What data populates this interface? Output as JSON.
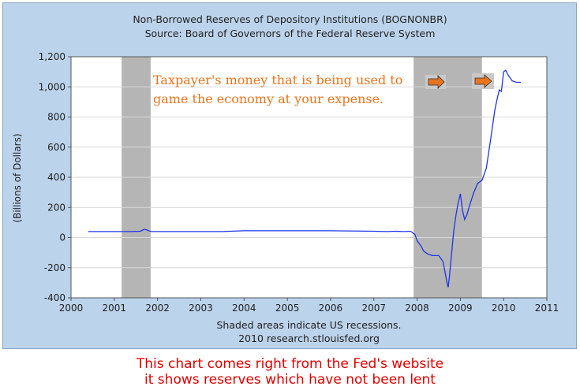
{
  "header": {
    "title": "Non-Borrowed Reserves of Depository Institutions (BOGNONBR)",
    "source": "Source: Board of Governors of the Federal Reserve System"
  },
  "footer": {
    "note": "Shaded areas indicate US recessions.",
    "credit": "2010 research.stlouisfed.org"
  },
  "caption": {
    "line1": "This chart comes right from the Fed's website",
    "line2": "it shows reserves which have not been lent"
  },
  "colors": {
    "line": "#1f35e6",
    "recession": "#b5b5b5",
    "frame": "#bcd3ec",
    "annotation": "#e8741e",
    "caption": "#e00000"
  },
  "chart_data": {
    "type": "line",
    "title": "Non-Borrowed Reserves of Depository Institutions (BOGNONBR)",
    "ylabel": "(Billions of Dollars)",
    "xlim": [
      2000,
      2011
    ],
    "ylim": [
      -400,
      1200
    ],
    "x_ticks": [
      "2000",
      "2001",
      "2002",
      "2003",
      "2004",
      "2005",
      "2006",
      "2007",
      "2008",
      "2009",
      "2010",
      "2011"
    ],
    "y_ticks": [
      "-400",
      "-200",
      "0",
      "200",
      "400",
      "600",
      "800",
      "1,000",
      "1,200"
    ],
    "y_tick_values": [
      -400,
      -200,
      0,
      200,
      400,
      600,
      800,
      1000,
      1200
    ],
    "grid": true,
    "recessions": [
      [
        2001.17,
        2001.84
      ],
      [
        2007.92,
        2009.5
      ]
    ],
    "annotation_lines": [
      "Taxpayer's money  that is being used  to",
      "game the economy at your expense."
    ],
    "series": [
      {
        "x": [
          2000.4,
          2001.0,
          2001.4,
          2001.6,
          2001.7,
          2001.85,
          2002.5,
          2003.0,
          2003.5,
          2004.0,
          2005.0,
          2006.0,
          2007.0,
          2007.3,
          2007.5,
          2007.7,
          2007.85,
          2007.95,
          2008.0,
          2008.1,
          2008.15,
          2008.25,
          2008.35,
          2008.5,
          2008.6,
          2008.7,
          2008.72,
          2008.75,
          2008.8,
          2008.85,
          2008.9,
          2008.95,
          2009.0,
          2009.05,
          2009.1,
          2009.15,
          2009.2,
          2009.3,
          2009.4,
          2009.5,
          2009.6,
          2009.7,
          2009.8,
          2009.85,
          2009.9,
          2009.95,
          2010.0,
          2010.05,
          2010.1,
          2010.15,
          2010.2,
          2010.3,
          2010.4
        ],
        "y": [
          40,
          40,
          40,
          42,
          55,
          40,
          40,
          40,
          40,
          45,
          45,
          45,
          42,
          40,
          42,
          40,
          42,
          20,
          -20,
          -60,
          -90,
          -110,
          -120,
          -120,
          -160,
          -310,
          -330,
          -250,
          -100,
          50,
          150,
          230,
          290,
          180,
          120,
          150,
          200,
          290,
          360,
          380,
          460,
          650,
          850,
          920,
          980,
          970,
          1100,
          1110,
          1080,
          1060,
          1040,
          1030,
          1030
        ]
      }
    ]
  }
}
